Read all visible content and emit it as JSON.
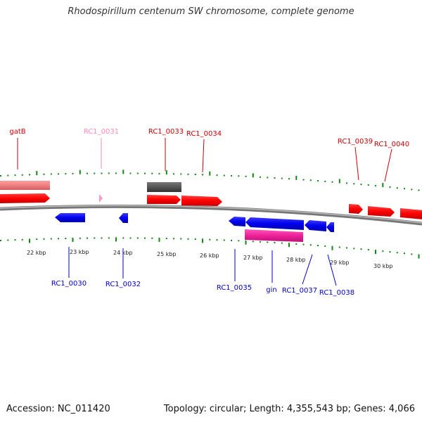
{
  "title": "Rhodospirillum centenum SW chromosome, complete genome",
  "footer": {
    "accession": "Accession: NC_011420",
    "summary": "Topology: circular; Length: 4,355,543 bp; Genes: 4,066"
  },
  "colors": {
    "forward_gene": "#ff0000",
    "reverse_gene": "#0000ee",
    "highlight_gene": "#ee2299",
    "rna_gene": "#555555",
    "pseudo_gene": "#f08080",
    "pink_gene": "#ff99cc",
    "tick": "#118811",
    "backbone": "#888888"
  },
  "scale_labels": [
    "22 kbp",
    "23 kbp",
    "24 kbp",
    "25 kbp",
    "26 kbp",
    "27 kbp",
    "28 kbp",
    "29 kbp",
    "30 kbp"
  ],
  "top_labels": [
    {
      "text": "gatB",
      "color": "#cc0000"
    },
    {
      "text": "RC1_0031",
      "color": "#ff88bb"
    },
    {
      "text": "RC1_0033",
      "color": "#cc0000"
    },
    {
      "text": "RC1_0034",
      "color": "#cc0000"
    },
    {
      "text": "RC1_0039",
      "color": "#cc0000"
    },
    {
      "text": "RC1_0040",
      "color": "#cc0000"
    }
  ],
  "bottom_labels": [
    {
      "text": "RC1_0030",
      "color": "#0000cc"
    },
    {
      "text": "RC1_0032",
      "color": "#0000cc"
    },
    {
      "text": "RC1_0035",
      "color": "#0000cc"
    },
    {
      "text": "gin",
      "color": "#0000cc"
    },
    {
      "text": "RC1_0037",
      "color": "#0000cc"
    },
    {
      "text": "RC1_0038",
      "color": "#0000cc"
    }
  ]
}
